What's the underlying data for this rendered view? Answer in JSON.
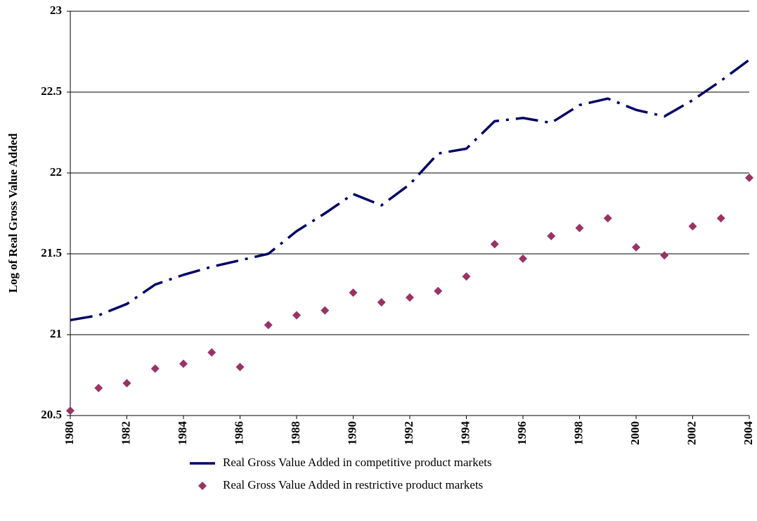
{
  "chart_data": {
    "type": "line",
    "y_label": "Log of Real Gross Value Added",
    "x": [
      1980,
      1981,
      1982,
      1983,
      1984,
      1985,
      1986,
      1987,
      1988,
      1989,
      1990,
      1991,
      1992,
      1993,
      1994,
      1995,
      1996,
      1997,
      1998,
      1999,
      2000,
      2001,
      2002,
      2003,
      2004
    ],
    "xlim": [
      1980,
      2004
    ],
    "xticks": [
      1980,
      1982,
      1984,
      1986,
      1988,
      1990,
      1992,
      1994,
      1996,
      1998,
      2000,
      2002,
      2004
    ],
    "ylim": [
      20.5,
      23
    ],
    "yticks": [
      20.5,
      21,
      21.5,
      22,
      22.5,
      23
    ],
    "grid": true,
    "legend": "bottom",
    "series": [
      {
        "name": "Real Gross Value Added in competitive product markets",
        "type": "line",
        "color": "#000066",
        "values": [
          21.09,
          21.12,
          21.19,
          21.31,
          21.37,
          21.42,
          21.46,
          21.5,
          21.64,
          21.75,
          21.87,
          21.8,
          21.93,
          22.12,
          22.15,
          22.32,
          22.34,
          22.31,
          22.42,
          22.46,
          22.39,
          22.35,
          22.45,
          22.57,
          22.7
        ]
      },
      {
        "name": "Real Gross Value Added in restrictive product markets",
        "type": "scatter",
        "color": "#993366",
        "values": [
          20.53,
          20.67,
          20.7,
          20.79,
          20.82,
          20.89,
          20.8,
          21.06,
          21.12,
          21.15,
          21.26,
          21.2,
          21.23,
          21.27,
          21.36,
          21.56,
          21.47,
          21.61,
          21.66,
          21.72,
          21.54,
          21.49,
          21.67,
          21.72,
          21.97
        ]
      }
    ]
  }
}
